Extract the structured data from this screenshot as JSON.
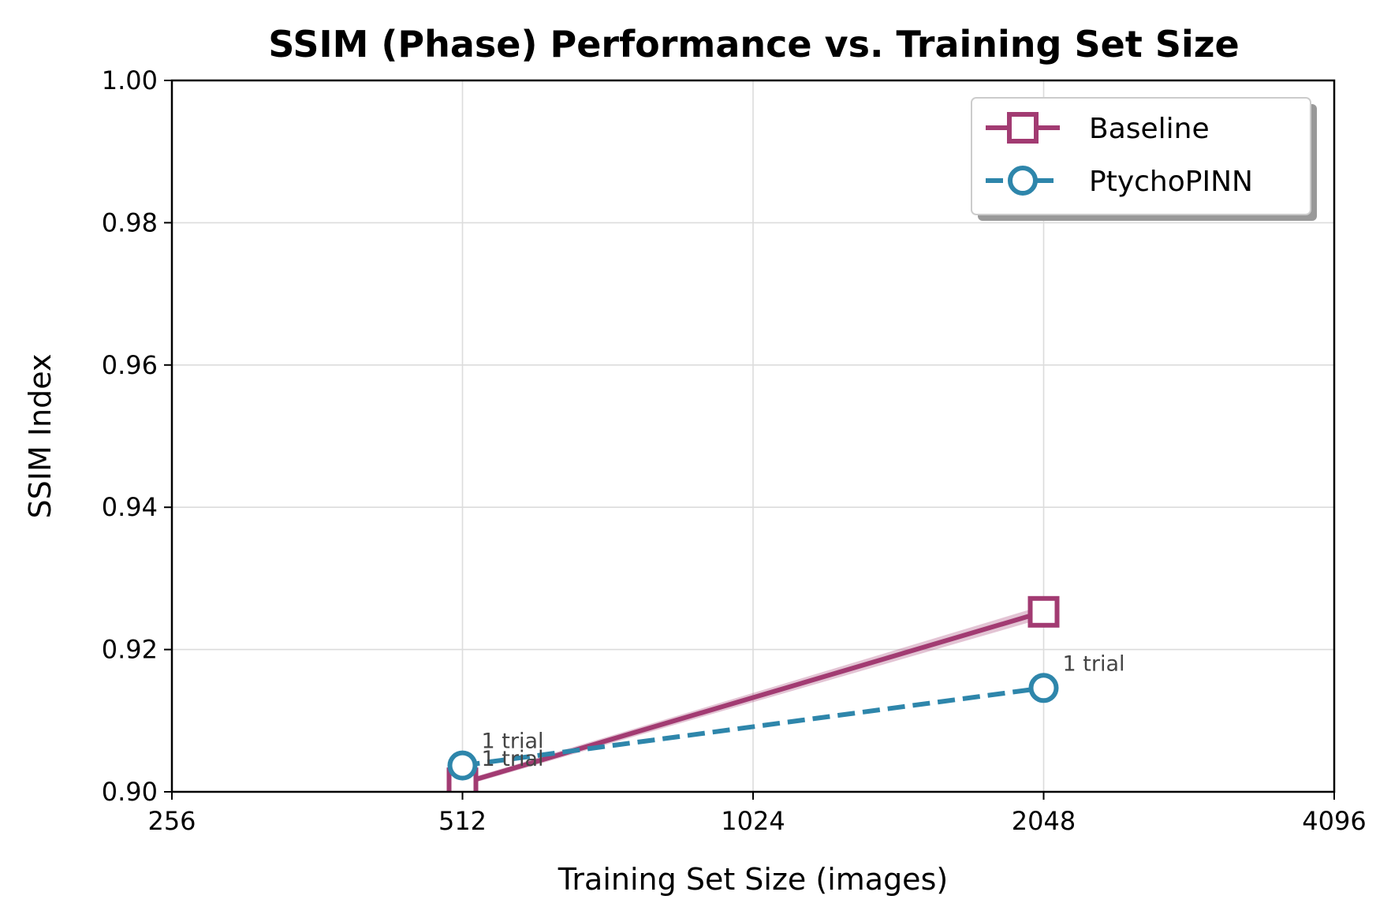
{
  "chart_data": {
    "type": "line",
    "title": "SSIM (Phase) Performance vs. Training Set Size",
    "xlabel": "Training Set Size (images)",
    "ylabel": "SSIM Index",
    "xscale": "log2",
    "xlim": [
      256,
      4096
    ],
    "ylim": [
      0.9,
      1.0
    ],
    "xticks": [
      256,
      512,
      1024,
      2048,
      4096
    ],
    "xtick_labels": [
      "256",
      "512",
      "1024",
      "2048",
      "4096"
    ],
    "yticks": [
      0.9,
      0.92,
      0.94,
      0.96,
      0.98,
      1.0
    ],
    "ytick_labels": [
      "0.90",
      "0.92",
      "0.94",
      "0.96",
      "0.98",
      "1.00"
    ],
    "grid": true,
    "legend_position": "top-right",
    "series": [
      {
        "name": "Baseline",
        "color": "#a23b72",
        "marker": "square",
        "linestyle": "solid",
        "x": [
          512,
          2048
        ],
        "y": [
          0.9012,
          0.9253
        ],
        "band_low": [
          0.9008,
          0.9244
        ],
        "band_high": [
          0.9016,
          0.9262
        ],
        "annotations": [
          "1 trial",
          ""
        ]
      },
      {
        "name": "PtychoPINN",
        "color": "#2e86ab",
        "marker": "circle",
        "linestyle": "dashed",
        "x": [
          512,
          2048
        ],
        "y": [
          0.9037,
          0.9146
        ],
        "annotations": [
          "1 trial",
          "1 trial"
        ]
      }
    ]
  }
}
